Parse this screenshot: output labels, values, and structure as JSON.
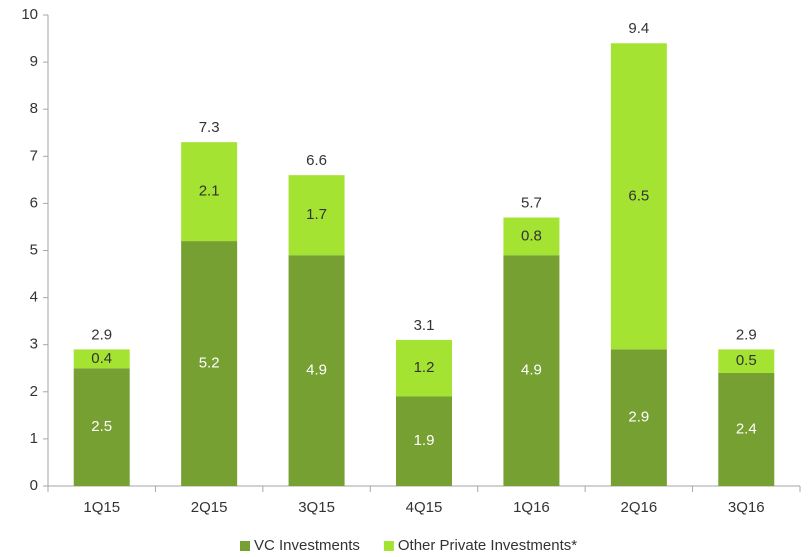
{
  "chart_data": {
    "type": "stacked_bar",
    "categories": [
      "1Q15",
      "2Q15",
      "3Q15",
      "4Q15",
      "1Q16",
      "2Q16",
      "3Q16"
    ],
    "series": [
      {
        "name": "VC Investments",
        "color": "#76a032",
        "label_color": "#ffffff",
        "values": [
          2.5,
          5.2,
          4.9,
          1.9,
          4.9,
          2.9,
          2.4
        ]
      },
      {
        "name": "Other Private Investments*",
        "color": "#a5e332",
        "label_color": "#333333",
        "values": [
          0.4,
          2.1,
          1.7,
          1.2,
          0.8,
          6.5,
          0.5
        ]
      }
    ],
    "totals": [
      2.9,
      7.3,
      6.6,
      3.1,
      5.7,
      9.4,
      2.9
    ],
    "ylim": [
      0,
      10
    ],
    "yticks": [
      0,
      1,
      2,
      3,
      4,
      5,
      6,
      7,
      8,
      9,
      10
    ],
    "legend": "bottom"
  }
}
